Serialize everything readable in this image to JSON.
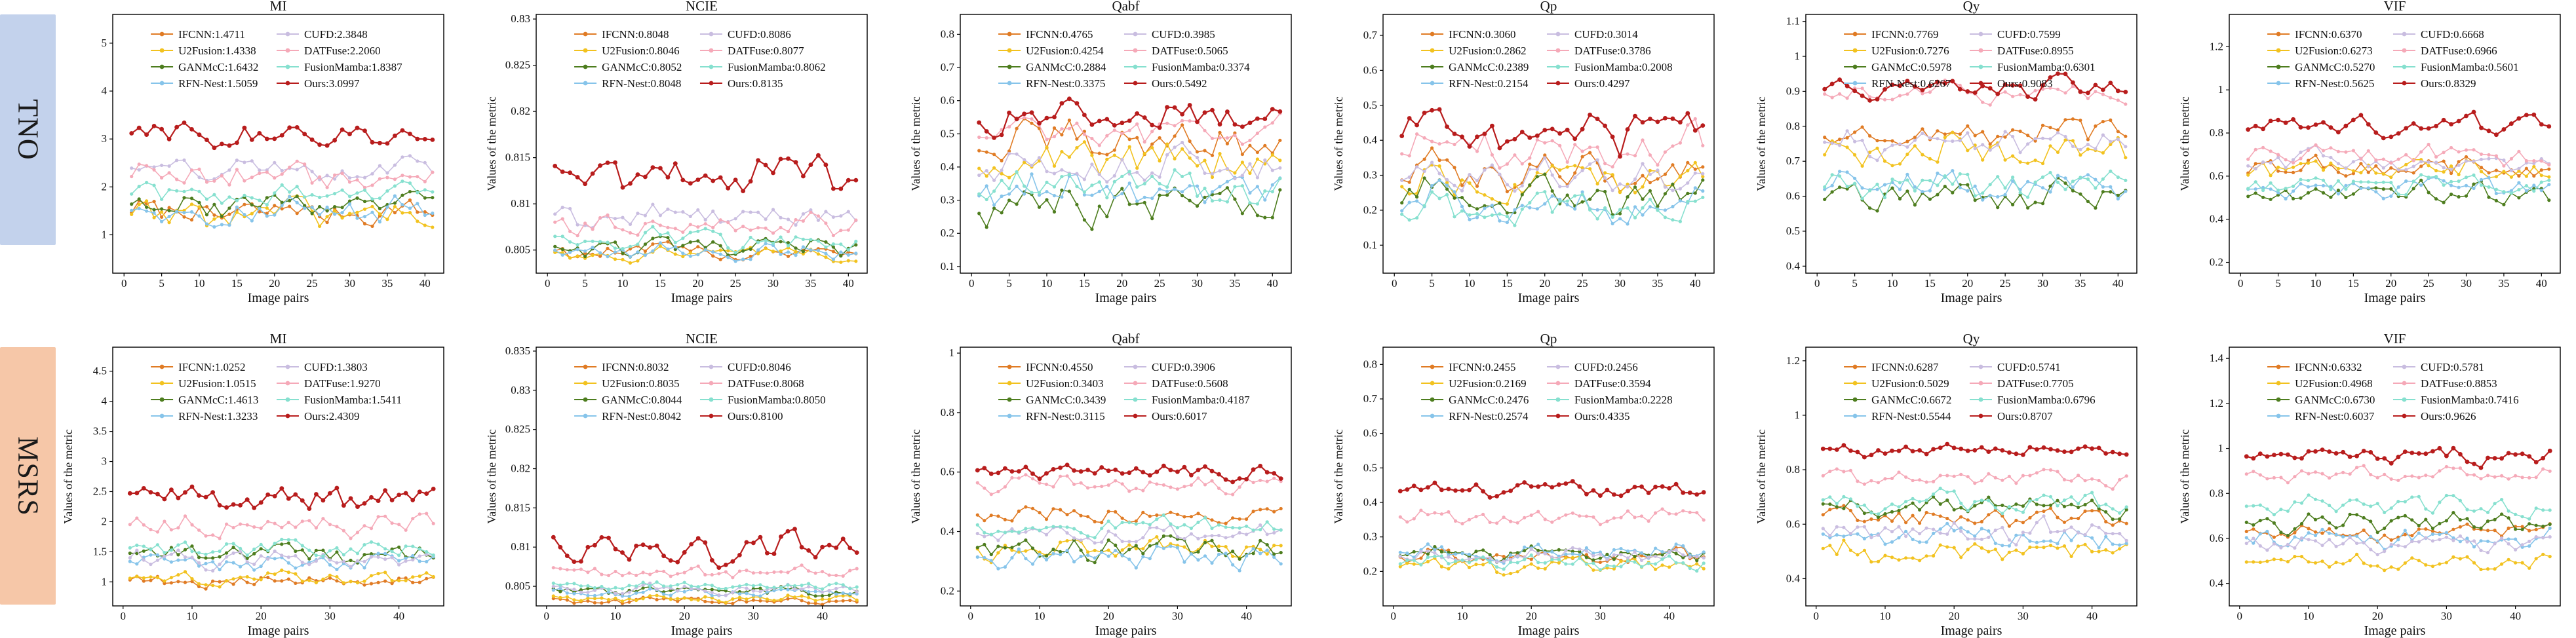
{
  "rows": [
    {
      "label": "TNO",
      "color": "#c3d2ec"
    },
    {
      "label": "MSRS",
      "color": "#f6c7a8"
    }
  ],
  "series_colors": {
    "IFCNN": "#e07b24",
    "U2Fusion": "#f2c21f",
    "GANMcC": "#4d7d1e",
    "RFN-Nest": "#86c4ea",
    "CUFD": "#c9bde0",
    "DATFuse": "#f5a9b8",
    "FusionMamba": "#86e0cf",
    "Ours": "#b81c1c"
  },
  "chart_data": [
    {
      "type": "line",
      "title": "MI",
      "row": 0,
      "xlabel": "Image pairs",
      "ylabel": "",
      "n": 41,
      "ylim": [
        0.2,
        5.6
      ],
      "yticks": [
        1,
        2,
        3,
        4,
        5
      ],
      "xticks": [
        0,
        5,
        10,
        15,
        20,
        25,
        30,
        35,
        40
      ],
      "legend": [
        "IFCNN:1.4711",
        "CUFD:2.3848",
        "U2Fusion:1.4338",
        "DATFuse:2.2060",
        "GANMcC:1.6432",
        "FusionMamba:1.8387",
        "RFN-Nest:1.5059",
        "Ours:3.0997"
      ],
      "series": [
        {
          "name": "IFCNN",
          "mean": 1.4711,
          "amp": 0.35
        },
        {
          "name": "U2Fusion",
          "mean": 1.4338,
          "amp": 0.4
        },
        {
          "name": "GANMcC",
          "mean": 1.6432,
          "amp": 0.35
        },
        {
          "name": "RFN-Nest",
          "mean": 1.5059,
          "amp": 0.4
        },
        {
          "name": "CUFD",
          "mean": 2.3848,
          "amp": 0.35
        },
        {
          "name": "DATFuse",
          "mean": 2.206,
          "amp": 0.35
        },
        {
          "name": "FusionMamba",
          "mean": 1.8387,
          "amp": 0.3
        },
        {
          "name": "Ours",
          "mean": 3.0997,
          "amp": 0.35
        }
      ]
    },
    {
      "type": "line",
      "title": "NCIE",
      "row": 0,
      "xlabel": "Image pairs",
      "ylabel": "Values of the metric",
      "n": 41,
      "ylim": [
        0.8025,
        0.8305
      ],
      "yticks": [
        0.805,
        0.81,
        0.815,
        0.82,
        0.825,
        0.83
      ],
      "xticks": [
        0,
        5,
        10,
        15,
        20,
        25,
        30,
        35,
        40
      ],
      "legend": [
        "IFCNN:0.8048",
        "CUFD:0.8086",
        "U2Fusion:0.8046",
        "DATFuse:0.8077",
        "GANMcC:0.8052",
        "FusionMamba:0.8062",
        "RFN-Nest:0.8048",
        "Ours:0.8135"
      ],
      "series": [
        {
          "name": "IFCNN",
          "mean": 0.8048,
          "amp": 0.0012
        },
        {
          "name": "U2Fusion",
          "mean": 0.8046,
          "amp": 0.0012
        },
        {
          "name": "GANMcC",
          "mean": 0.8052,
          "amp": 0.0013
        },
        {
          "name": "RFN-Nest",
          "mean": 0.8048,
          "amp": 0.0012
        },
        {
          "name": "CUFD",
          "mean": 0.8086,
          "amp": 0.0018
        },
        {
          "name": "DATFuse",
          "mean": 0.8077,
          "amp": 0.0018
        },
        {
          "name": "FusionMamba",
          "mean": 0.8062,
          "amp": 0.0015
        },
        {
          "name": "Ours",
          "mean": 0.8135,
          "amp": 0.003
        }
      ]
    },
    {
      "type": "line",
      "title": "Qabf",
      "row": 0,
      "xlabel": "Image pairs",
      "ylabel": "Values of the metric",
      "n": 41,
      "ylim": [
        0.08,
        0.86
      ],
      "yticks": [
        0.1,
        0.2,
        0.3,
        0.4,
        0.5,
        0.6,
        0.7,
        0.8
      ],
      "xticks": [
        0,
        5,
        10,
        15,
        20,
        25,
        30,
        35,
        40
      ],
      "legend": [
        "IFCNN:0.4765",
        "CUFD:0.3985",
        "U2Fusion:0.4254",
        "DATFuse:0.5065",
        "GANMcC:0.2884",
        "FusionMamba:0.3374",
        "RFN-Nest:0.3375",
        "Ours:0.5492"
      ],
      "series": [
        {
          "name": "IFCNN",
          "mean": 0.4765,
          "amp": 0.08
        },
        {
          "name": "U2Fusion",
          "mean": 0.4254,
          "amp": 0.09
        },
        {
          "name": "GANMcC",
          "mean": 0.2884,
          "amp": 0.09
        },
        {
          "name": "RFN-Nest",
          "mean": 0.3375,
          "amp": 0.08
        },
        {
          "name": "CUFD",
          "mean": 0.3985,
          "amp": 0.08
        },
        {
          "name": "DATFuse",
          "mean": 0.5065,
          "amp": 0.06
        },
        {
          "name": "FusionMamba",
          "mean": 0.3374,
          "amp": 0.07
        },
        {
          "name": "Ours",
          "mean": 0.5492,
          "amp": 0.06
        }
      ]
    },
    {
      "type": "line",
      "title": "Qp",
      "row": 0,
      "xlabel": "Image pairs",
      "ylabel": "Values of the metric",
      "n": 41,
      "ylim": [
        0.02,
        0.76
      ],
      "yticks": [
        0.1,
        0.2,
        0.3,
        0.4,
        0.5,
        0.6,
        0.7
      ],
      "xticks": [
        0,
        5,
        10,
        15,
        20,
        25,
        30,
        35,
        40
      ],
      "legend": [
        "IFCNN:0.3060",
        "CUFD:0.3014",
        "U2Fusion:0.2862",
        "DATFuse:0.3786",
        "GANMcC:0.2389",
        "FusionMamba:0.2008",
        "RFN-Nest:0.2154",
        "Ours:0.4297"
      ],
      "series": [
        {
          "name": "IFCNN",
          "mean": 0.306,
          "amp": 0.07
        },
        {
          "name": "U2Fusion",
          "mean": 0.2862,
          "amp": 0.07
        },
        {
          "name": "GANMcC",
          "mean": 0.2389,
          "amp": 0.07
        },
        {
          "name": "RFN-Nest",
          "mean": 0.2154,
          "amp": 0.07
        },
        {
          "name": "CUFD",
          "mean": 0.3014,
          "amp": 0.07
        },
        {
          "name": "DATFuse",
          "mean": 0.3786,
          "amp": 0.08
        },
        {
          "name": "FusionMamba",
          "mean": 0.2008,
          "amp": 0.06
        },
        {
          "name": "Ours",
          "mean": 0.4297,
          "amp": 0.09
        }
      ]
    },
    {
      "type": "line",
      "title": "Qy",
      "row": 0,
      "xlabel": "Image pairs",
      "ylabel": "Values of the metric",
      "n": 41,
      "ylim": [
        0.38,
        1.12
      ],
      "yticks": [
        0.4,
        0.5,
        0.6,
        0.7,
        0.8,
        0.9,
        1.0,
        1.1
      ],
      "xticks": [
        0,
        5,
        10,
        15,
        20,
        25,
        30,
        35,
        40
      ],
      "legend": [
        "IFCNN:0.7769",
        "CUFD:0.7599",
        "U2Fusion:0.7276",
        "DATFuse:0.8955",
        "GANMcC:0.5978",
        "FusionMamba:0.6301",
        "RFN-Nest:0.6267",
        "Ours:0.9083"
      ],
      "series": [
        {
          "name": "IFCNN",
          "mean": 0.7769,
          "amp": 0.06
        },
        {
          "name": "U2Fusion",
          "mean": 0.7276,
          "amp": 0.07
        },
        {
          "name": "GANMcC",
          "mean": 0.5978,
          "amp": 0.06
        },
        {
          "name": "RFN-Nest",
          "mean": 0.6267,
          "amp": 0.07
        },
        {
          "name": "CUFD",
          "mean": 0.7599,
          "amp": 0.06
        },
        {
          "name": "DATFuse",
          "mean": 0.8955,
          "amp": 0.04
        },
        {
          "name": "FusionMamba",
          "mean": 0.6301,
          "amp": 0.06
        },
        {
          "name": "Ours",
          "mean": 0.9083,
          "amp": 0.04
        }
      ]
    },
    {
      "type": "line",
      "title": "VIF",
      "row": 0,
      "xlabel": "Image pairs",
      "ylabel": "Values of the metric",
      "n": 41,
      "ylim": [
        0.15,
        1.35
      ],
      "yticks": [
        0.2,
        0.4,
        0.6,
        0.8,
        1.0,
        1.2
      ],
      "xticks": [
        0,
        5,
        10,
        15,
        20,
        25,
        30,
        35,
        40
      ],
      "legend": [
        "IFCNN:0.6370",
        "CUFD:0.6668",
        "U2Fusion:0.6273",
        "DATFuse:0.6966",
        "GANMcC:0.5270",
        "FusionMamba:0.5601",
        "RFN-Nest:0.5625",
        "Ours:0.8329"
      ],
      "series": [
        {
          "name": "IFCNN",
          "mean": 0.637,
          "amp": 0.07
        },
        {
          "name": "U2Fusion",
          "mean": 0.6273,
          "amp": 0.07
        },
        {
          "name": "GANMcC",
          "mean": 0.527,
          "amp": 0.07
        },
        {
          "name": "RFN-Nest",
          "mean": 0.5625,
          "amp": 0.08
        },
        {
          "name": "CUFD",
          "mean": 0.6668,
          "amp": 0.07
        },
        {
          "name": "DATFuse",
          "mean": 0.6966,
          "amp": 0.07
        },
        {
          "name": "FusionMamba",
          "mean": 0.5601,
          "amp": 0.07
        },
        {
          "name": "Ours",
          "mean": 0.8329,
          "amp": 0.07
        }
      ]
    },
    {
      "type": "line",
      "title": "MI",
      "row": 1,
      "xlabel": "Image pairs",
      "ylabel": "Values of the metric",
      "n": 45,
      "ylim": [
        0.6,
        4.9
      ],
      "yticks": [
        1,
        1.5,
        2,
        2.5,
        3,
        3.5,
        4,
        4.5
      ],
      "xticks": [
        0,
        10,
        20,
        30,
        40
      ],
      "legend": [
        "IFCNN:1.0252",
        "CUFD:1.3803",
        "U2Fusion:1.0515",
        "DATFuse:1.9270",
        "GANMcC:1.4613",
        "FusionMamba:1.5411",
        "RFN-Nest:1.3233",
        "Ours:2.4309"
      ],
      "series": [
        {
          "name": "IFCNN",
          "mean": 1.0252,
          "amp": 0.15
        },
        {
          "name": "U2Fusion",
          "mean": 1.0515,
          "amp": 0.15
        },
        {
          "name": "GANMcC",
          "mean": 1.4613,
          "amp": 0.2
        },
        {
          "name": "RFN-Nest",
          "mean": 1.3233,
          "amp": 0.2
        },
        {
          "name": "CUFD",
          "mean": 1.3803,
          "amp": 0.2
        },
        {
          "name": "DATFuse",
          "mean": 1.927,
          "amp": 0.25
        },
        {
          "name": "FusionMamba",
          "mean": 1.5411,
          "amp": 0.2
        },
        {
          "name": "Ours",
          "mean": 2.4309,
          "amp": 0.3
        }
      ]
    },
    {
      "type": "line",
      "title": "NCIE",
      "row": 1,
      "xlabel": "Image pairs",
      "ylabel": "Values of the metric",
      "n": 45,
      "ylim": [
        0.8025,
        0.8355
      ],
      "yticks": [
        0.805,
        0.81,
        0.815,
        0.82,
        0.825,
        0.83,
        0.835
      ],
      "xticks": [
        0,
        10,
        20,
        30,
        40
      ],
      "legend": [
        "IFCNN:0.8032",
        "CUFD:0.8046",
        "U2Fusion:0.8035",
        "DATFuse:0.8068",
        "GANMcC:0.8044",
        "FusionMamba:0.8050",
        "RFN-Nest:0.8042",
        "Ours:0.8100"
      ],
      "series": [
        {
          "name": "IFCNN",
          "mean": 0.8032,
          "amp": 0.0006
        },
        {
          "name": "U2Fusion",
          "mean": 0.8035,
          "amp": 0.0006
        },
        {
          "name": "GANMcC",
          "mean": 0.8044,
          "amp": 0.0007
        },
        {
          "name": "RFN-Nest",
          "mean": 0.8042,
          "amp": 0.0007
        },
        {
          "name": "CUFD",
          "mean": 0.8046,
          "amp": 0.0008
        },
        {
          "name": "DATFuse",
          "mean": 0.8068,
          "amp": 0.0012
        },
        {
          "name": "FusionMamba",
          "mean": 0.805,
          "amp": 0.0008
        },
        {
          "name": "Ours",
          "mean": 0.81,
          "amp": 0.0025
        }
      ]
    },
    {
      "type": "line",
      "title": "Qabf",
      "row": 1,
      "xlabel": "Image pairs",
      "ylabel": "Values of the metric",
      "n": 45,
      "ylim": [
        0.15,
        1.02
      ],
      "yticks": [
        0.2,
        0.4,
        0.6,
        0.8,
        1.0
      ],
      "xticks": [
        0,
        10,
        20,
        30,
        40
      ],
      "legend": [
        "IFCNN:0.4550",
        "CUFD:0.3906",
        "U2Fusion:0.3403",
        "DATFuse:0.5608",
        "GANMcC:0.3439",
        "FusionMamba:0.4187",
        "RFN-Nest:0.3115",
        "Ours:0.6017"
      ],
      "series": [
        {
          "name": "IFCNN",
          "mean": 0.455,
          "amp": 0.04
        },
        {
          "name": "U2Fusion",
          "mean": 0.3403,
          "amp": 0.05
        },
        {
          "name": "GANMcC",
          "mean": 0.3439,
          "amp": 0.06
        },
        {
          "name": "RFN-Nest",
          "mean": 0.3115,
          "amp": 0.05
        },
        {
          "name": "CUFD",
          "mean": 0.3906,
          "amp": 0.04
        },
        {
          "name": "DATFuse",
          "mean": 0.5608,
          "amp": 0.04
        },
        {
          "name": "FusionMamba",
          "mean": 0.4187,
          "amp": 0.04
        },
        {
          "name": "Ours",
          "mean": 0.6017,
          "amp": 0.04
        }
      ]
    },
    {
      "type": "line",
      "title": "Qp",
      "row": 1,
      "xlabel": "Image pairs",
      "ylabel": "Values of the metric",
      "n": 45,
      "ylim": [
        0.1,
        0.85
      ],
      "yticks": [
        0.2,
        0.3,
        0.4,
        0.5,
        0.6,
        0.7,
        0.8
      ],
      "xticks": [
        0,
        10,
        20,
        30,
        40
      ],
      "legend": [
        "IFCNN:0.2455",
        "CUFD:0.2456",
        "U2Fusion:0.2169",
        "DATFuse:0.3594",
        "GANMcC:0.2476",
        "FusionMamba:0.2228",
        "RFN-Nest:0.2574",
        "Ours:0.4335"
      ],
      "series": [
        {
          "name": "IFCNN",
          "mean": 0.2455,
          "amp": 0.03
        },
        {
          "name": "U2Fusion",
          "mean": 0.2169,
          "amp": 0.03
        },
        {
          "name": "GANMcC",
          "mean": 0.2476,
          "amp": 0.03
        },
        {
          "name": "RFN-Nest",
          "mean": 0.2574,
          "amp": 0.03
        },
        {
          "name": "CUFD",
          "mean": 0.2456,
          "amp": 0.03
        },
        {
          "name": "DATFuse",
          "mean": 0.3594,
          "amp": 0.03
        },
        {
          "name": "FusionMamba",
          "mean": 0.2228,
          "amp": 0.03
        },
        {
          "name": "Ours",
          "mean": 0.4335,
          "amp": 0.03
        }
      ]
    },
    {
      "type": "line",
      "title": "Qy",
      "row": 1,
      "xlabel": "Image pairs",
      "ylabel": "Values of the metric",
      "n": 45,
      "ylim": [
        0.3,
        1.25
      ],
      "yticks": [
        0.4,
        0.6,
        0.8,
        1.0,
        1.2
      ],
      "xticks": [
        0,
        10,
        20,
        30,
        40
      ],
      "legend": [
        "IFCNN:0.6287",
        "CUFD:0.5741",
        "U2Fusion:0.5029",
        "DATFuse:0.7705",
        "GANMcC:0.6672",
        "FusionMamba:0.6796",
        "RFN-Nest:0.5544",
        "Ours:0.8707"
      ],
      "series": [
        {
          "name": "IFCNN",
          "mean": 0.6287,
          "amp": 0.05
        },
        {
          "name": "U2Fusion",
          "mean": 0.5029,
          "amp": 0.06
        },
        {
          "name": "GANMcC",
          "mean": 0.6672,
          "amp": 0.05
        },
        {
          "name": "RFN-Nest",
          "mean": 0.5544,
          "amp": 0.06
        },
        {
          "name": "CUFD",
          "mean": 0.5741,
          "amp": 0.06
        },
        {
          "name": "DATFuse",
          "mean": 0.7705,
          "amp": 0.04
        },
        {
          "name": "FusionMamba",
          "mean": 0.6796,
          "amp": 0.05
        },
        {
          "name": "Ours",
          "mean": 0.8707,
          "amp": 0.03
        }
      ]
    },
    {
      "type": "line",
      "title": "VIF",
      "row": 1,
      "xlabel": "Image pairs",
      "ylabel": "Values of the metric",
      "n": 45,
      "ylim": [
        0.3,
        1.45
      ],
      "yticks": [
        0.4,
        0.6,
        0.8,
        1.0,
        1.2,
        1.4
      ],
      "xticks": [
        0,
        10,
        20,
        30,
        40
      ],
      "legend": [
        "IFCNN:0.6332",
        "CUFD:0.5781",
        "U2Fusion:0.4968",
        "DATFuse:0.8853",
        "GANMcC:0.6730",
        "FusionMamba:0.7416",
        "RFN-Nest:0.6037",
        "Ours:0.9626"
      ],
      "series": [
        {
          "name": "IFCNN",
          "mean": 0.6332,
          "amp": 0.05
        },
        {
          "name": "U2Fusion",
          "mean": 0.4968,
          "amp": 0.05
        },
        {
          "name": "GANMcC",
          "mean": 0.673,
          "amp": 0.06
        },
        {
          "name": "RFN-Nest",
          "mean": 0.6037,
          "amp": 0.06
        },
        {
          "name": "CUFD",
          "mean": 0.5781,
          "amp": 0.05
        },
        {
          "name": "DATFuse",
          "mean": 0.8853,
          "amp": 0.05
        },
        {
          "name": "FusionMamba",
          "mean": 0.7416,
          "amp": 0.06
        },
        {
          "name": "Ours",
          "mean": 0.9626,
          "amp": 0.05
        }
      ]
    }
  ]
}
